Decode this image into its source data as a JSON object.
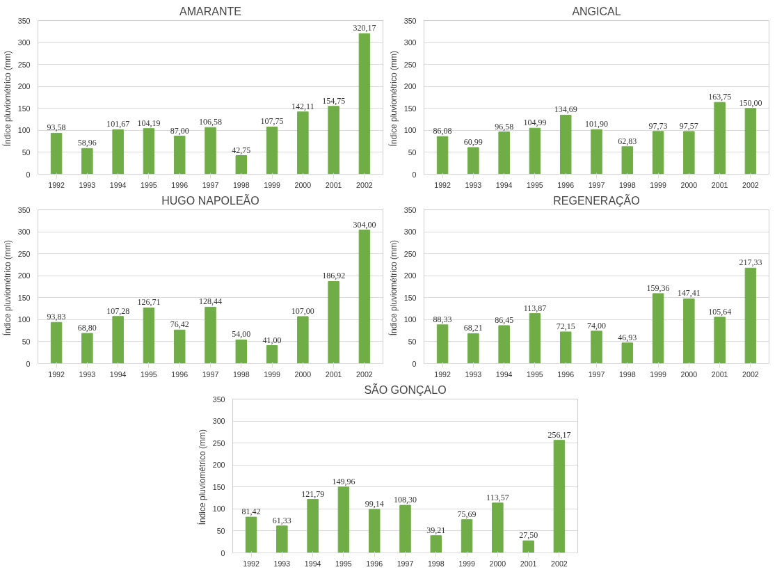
{
  "chart_data": [
    {
      "type": "bar",
      "title": "AMARANTE",
      "ylabel": "Índice pluviométrico  (mm)",
      "categories": [
        "1992",
        "1993",
        "1994",
        "1995",
        "1996",
        "1997",
        "1998",
        "1999",
        "2000",
        "2001",
        "2002"
      ],
      "values": [
        93.58,
        58.96,
        101.67,
        104.19,
        87.0,
        106.58,
        42.75,
        107.75,
        142.11,
        154.75,
        320.17
      ],
      "value_labels": [
        "93,58",
        "58,96",
        "101,67",
        "104,19",
        "87,00",
        "106,58",
        "42,75",
        "107,75",
        "142,11",
        "154,75",
        "320,17"
      ],
      "color": "#70ad47",
      "ylim": [
        0,
        350
      ],
      "yticks": [
        0,
        50,
        100,
        150,
        200,
        250,
        300,
        350
      ],
      "grid": "y"
    },
    {
      "type": "bar",
      "title": "ANGICAL",
      "ylabel": "Índice pluviométrico  (mm)",
      "categories": [
        "1992",
        "1993",
        "1994",
        "1995",
        "1996",
        "1997",
        "1998",
        "1999",
        "2000",
        "2001",
        "2002"
      ],
      "values": [
        86.08,
        60.99,
        96.58,
        104.99,
        134.69,
        101.9,
        62.83,
        97.73,
        97.57,
        163.75,
        150.0
      ],
      "value_labels": [
        "86,08",
        "60,99",
        "96,58",
        "104,99",
        "134,69",
        "101,90",
        "62,83",
        "97,73",
        "97,57",
        "163,75",
        "150,00"
      ],
      "color": "#70ad47",
      "ylim": [
        0,
        350
      ],
      "yticks": [
        0,
        50,
        100,
        150,
        200,
        250,
        300,
        350
      ],
      "grid": "y"
    },
    {
      "type": "bar",
      "title": "HUGO NAPOLEÃO",
      "ylabel": "Índice pluviométrico  (mm)",
      "categories": [
        "1992",
        "1993",
        "1994",
        "1995",
        "1996",
        "1997",
        "1998",
        "1999",
        "2000",
        "2001",
        "2002"
      ],
      "values": [
        93.83,
        68.8,
        107.28,
        126.71,
        76.42,
        128.44,
        54.0,
        41.0,
        107.0,
        186.92,
        304.0
      ],
      "value_labels": [
        "93,83",
        "68,80",
        "107,28",
        "126,71",
        "76,42",
        "128,44",
        "54,00",
        "41,00",
        "107,00",
        "186,92",
        "304,00"
      ],
      "color": "#70ad47",
      "ylim": [
        0,
        350
      ],
      "yticks": [
        0,
        50,
        100,
        150,
        200,
        250,
        300,
        350
      ],
      "grid": "y"
    },
    {
      "type": "bar",
      "title": "REGENERAÇÃO",
      "ylabel": "Índice pluviométrico  (mm)",
      "categories": [
        "1992",
        "1993",
        "1994",
        "1995",
        "1996",
        "1997",
        "1998",
        "1999",
        "2000",
        "2001",
        "2002"
      ],
      "values": [
        88.33,
        68.21,
        86.45,
        113.87,
        72.15,
        74.0,
        46.93,
        159.36,
        147.41,
        105.64,
        217.33
      ],
      "value_labels": [
        "88,33",
        "68,21",
        "86,45",
        "113,87",
        "72,15",
        "74,00",
        "46,93",
        "159,36",
        "147,41",
        "105,64",
        "217,33"
      ],
      "color": "#70ad47",
      "ylim": [
        0,
        350
      ],
      "yticks": [
        0,
        50,
        100,
        150,
        200,
        250,
        300,
        350
      ],
      "grid": "y"
    },
    {
      "type": "bar",
      "title": "SÃO GONÇALO",
      "ylabel": "Índice pluviométrico  (mm)",
      "categories": [
        "1992",
        "1993",
        "1994",
        "1995",
        "1996",
        "1997",
        "1998",
        "1999",
        "2000",
        "2001",
        "2002"
      ],
      "values": [
        81.42,
        61.33,
        121.79,
        149.96,
        99.14,
        108.3,
        39.21,
        75.69,
        113.57,
        27.5,
        256.17
      ],
      "value_labels": [
        "81,42",
        "61,33",
        "121,79",
        "149,96",
        "99,14",
        "108,30",
        "39,21",
        "75,69",
        "113,57",
        "27,50",
        "256,17"
      ],
      "color": "#70ad47",
      "ylim": [
        0,
        350
      ],
      "yticks": [
        0,
        50,
        100,
        150,
        200,
        250,
        300,
        350
      ],
      "grid": "y"
    }
  ]
}
